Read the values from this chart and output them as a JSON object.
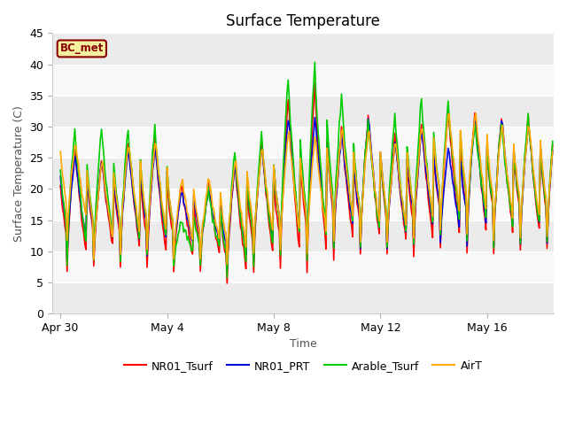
{
  "title": "Surface Temperature",
  "xlabel": "Time",
  "ylabel": "Surface Temperature (C)",
  "ylim": [
    0,
    45
  ],
  "xtick_labels": [
    "Apr 30",
    "May 4",
    "May 8",
    "May 12",
    "May 16"
  ],
  "xtick_positions": [
    0,
    4,
    8,
    12,
    16
  ],
  "series": {
    "NR01_Tsurf": {
      "color": "#ff0000",
      "linewidth": 1.2
    },
    "NR01_PRT": {
      "color": "#0000dd",
      "linewidth": 1.2
    },
    "Arable_Tsurf": {
      "color": "#00cc00",
      "linewidth": 1.2
    },
    "AirT": {
      "color": "#ffaa00",
      "linewidth": 1.2
    }
  },
  "bc_met_bg": "#f5f0a0",
  "bc_met_border": "#8B0000",
  "bc_met_text_color": "#8B0000",
  "band_colors": [
    "#ebebeb",
    "#f8f8f8"
  ],
  "band_boundaries": [
    0,
    5,
    10,
    15,
    20,
    25,
    30,
    35,
    40,
    45
  ]
}
